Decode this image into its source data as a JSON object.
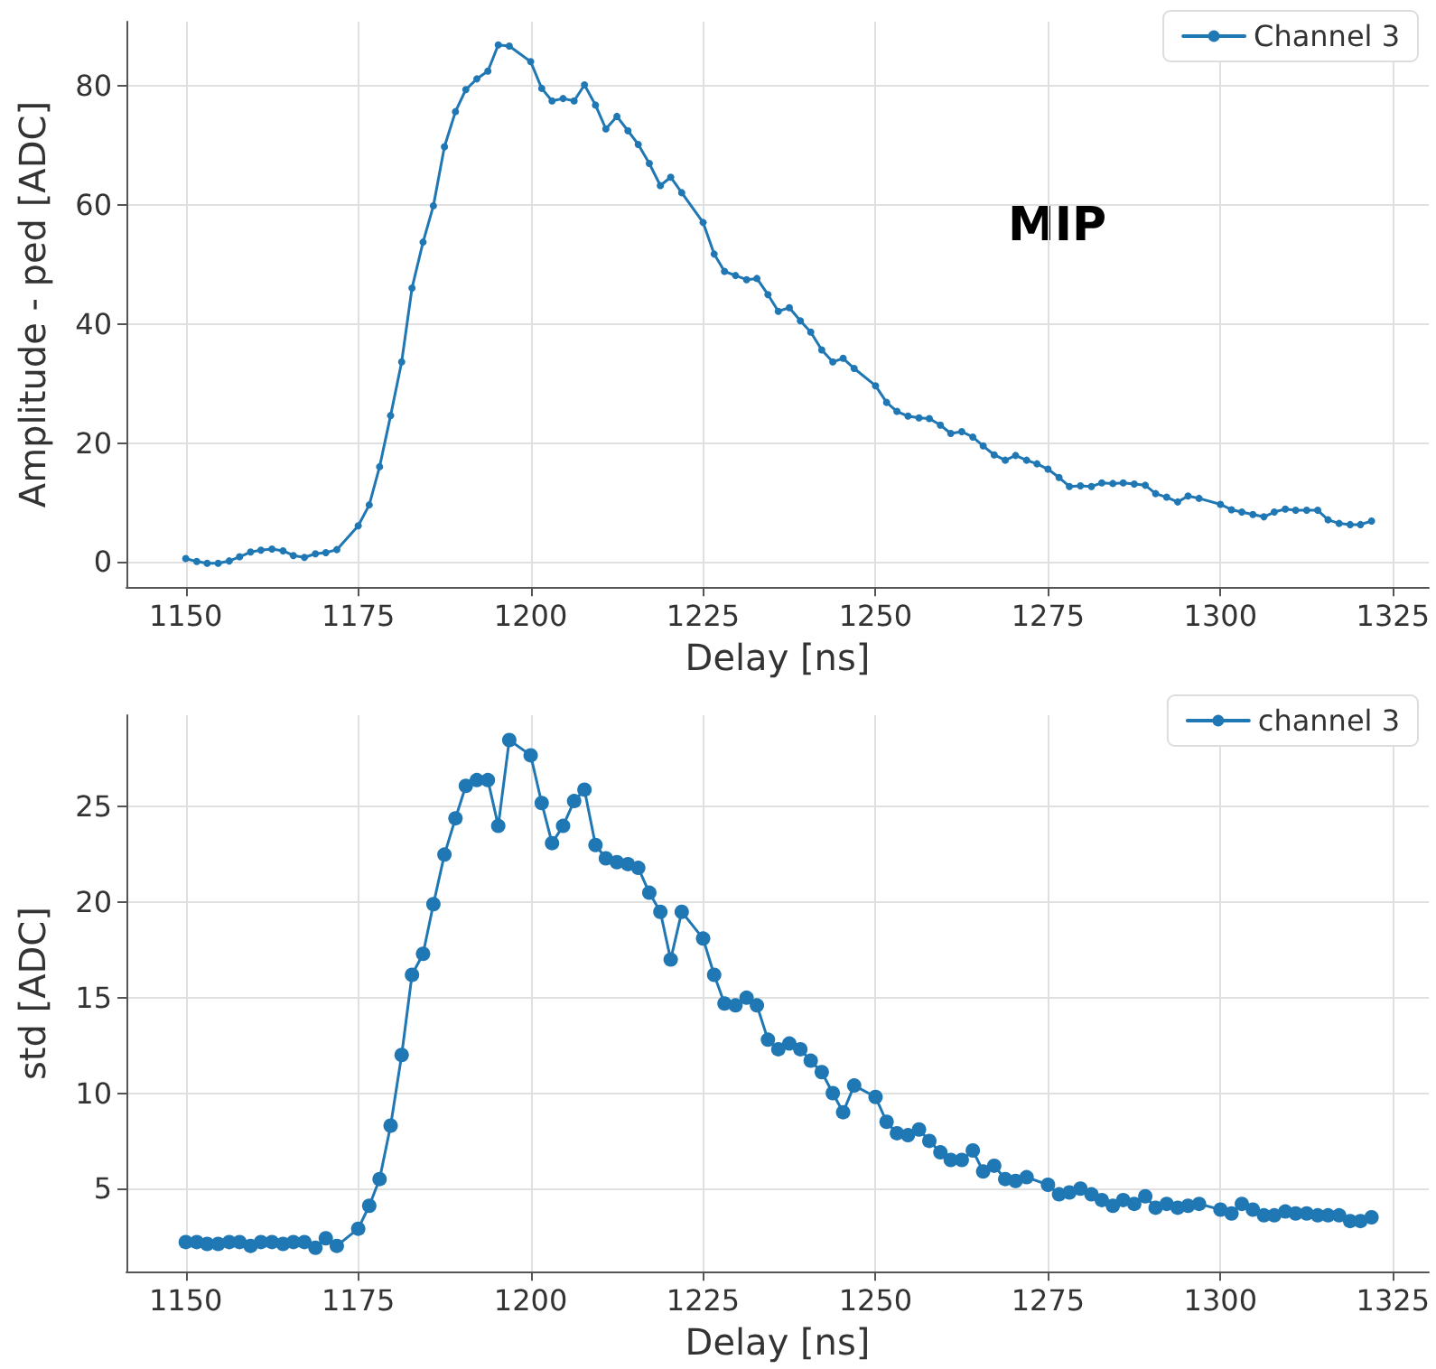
{
  "chart_data": [
    {
      "type": "line",
      "xlabel": "Delay [ns]",
      "ylabel": "Amplitude - ped [ADC]",
      "xlim": [
        1141.4,
        1330.2
      ],
      "xticks": [
        1150,
        1175,
        1200,
        1225,
        1250,
        1275,
        1300,
        1325
      ],
      "ylim": [
        -4.2,
        90.7
      ],
      "yticks": [
        0,
        20,
        40,
        60,
        80
      ],
      "grid": true,
      "legend": "top right",
      "marker": "circle",
      "line_style": "solid",
      "annotations": [
        "MIP"
      ],
      "series": [
        {
          "name": "Channel 3",
          "color": "#1f77b4",
          "x": [
            1150,
            1151.6,
            1153.1,
            1154.7,
            1156.3,
            1157.8,
            1159.4,
            1160.9,
            1162.5,
            1164.1,
            1165.6,
            1167.2,
            1168.8,
            1170.3,
            1171.9,
            1175,
            1176.6,
            1178.1,
            1179.7,
            1181.3,
            1182.8,
            1184.4,
            1185.9,
            1187.5,
            1189.1,
            1190.6,
            1192.2,
            1193.8,
            1195.3,
            1196.9,
            1200,
            1201.6,
            1203.1,
            1204.7,
            1206.3,
            1207.8,
            1209.4,
            1210.9,
            1212.5,
            1214.1,
            1215.6,
            1217.2,
            1218.8,
            1220.3,
            1221.9,
            1225,
            1226.6,
            1228.1,
            1229.7,
            1231.3,
            1232.8,
            1234.4,
            1235.9,
            1237.5,
            1239.1,
            1240.6,
            1242.2,
            1243.8,
            1245.3,
            1246.9,
            1250,
            1251.6,
            1253.1,
            1254.7,
            1256.3,
            1257.8,
            1259.4,
            1260.9,
            1262.5,
            1264.1,
            1265.6,
            1267.2,
            1268.8,
            1270.3,
            1271.9,
            1273.4,
            1275,
            1276.6,
            1278.1,
            1279.7,
            1281.3,
            1282.8,
            1284.4,
            1285.9,
            1287.5,
            1289.1,
            1290.6,
            1292.2,
            1293.8,
            1295.3,
            1296.9,
            1300,
            1301.6,
            1303.1,
            1304.7,
            1306.3,
            1307.8,
            1309.4,
            1310.9,
            1312.5,
            1314.1,
            1315.6,
            1317.2,
            1318.8,
            1320.3,
            1321.9
          ],
          "values": [
            0.6,
            0.1,
            -0.2,
            -0.2,
            0.2,
            0.9,
            1.7,
            2.0,
            2.2,
            1.9,
            1.1,
            0.8,
            1.4,
            1.6,
            2.1,
            6.1,
            9.6,
            16.0,
            24.6,
            33.6,
            46.0,
            53.7,
            59.8,
            69.7,
            75.6,
            79.3,
            81.1,
            82.4,
            86.8,
            86.6,
            84.0,
            79.5,
            77.4,
            77.8,
            77.4,
            80.1,
            76.7,
            72.7,
            74.8,
            72.4,
            70.1,
            66.9,
            63.2,
            64.6,
            62.0,
            57.0,
            51.7,
            48.8,
            48.1,
            47.4,
            47.6,
            44.9,
            42.1,
            42.7,
            40.5,
            38.6,
            35.6,
            33.6,
            34.2,
            32.5,
            29.6,
            26.8,
            25.3,
            24.5,
            24.2,
            24.1,
            23.0,
            21.6,
            21.9,
            21.0,
            19.5,
            18.0,
            17.1,
            17.9,
            17.1,
            16.5,
            15.6,
            14.2,
            12.7,
            12.8,
            12.7,
            13.3,
            13.2,
            13.3,
            13.1,
            12.9,
            11.5,
            10.9,
            10.1,
            11.1,
            10.7,
            9.7,
            8.8,
            8.4,
            8.0,
            7.6,
            8.4,
            8.9,
            8.7,
            8.7,
            8.7,
            7.1,
            6.5,
            6.3,
            6.3,
            6.9
          ]
        }
      ]
    },
    {
      "type": "line",
      "xlabel": "Delay [ns]",
      "ylabel": "std [ADC]",
      "xlim": [
        1141.4,
        1330.2
      ],
      "xticks": [
        1150,
        1175,
        1200,
        1225,
        1250,
        1275,
        1300,
        1325
      ],
      "ylim": [
        0.65,
        29.8
      ],
      "yticks": [
        5,
        10,
        15,
        20,
        25
      ],
      "grid": true,
      "legend": "top right",
      "marker": "circle",
      "line_style": "solid",
      "series": [
        {
          "name": "channel 3",
          "color": "#1f77b4",
          "x": [
            1150,
            1151.6,
            1153.1,
            1154.7,
            1156.3,
            1157.8,
            1159.4,
            1160.9,
            1162.5,
            1164.1,
            1165.6,
            1167.2,
            1168.8,
            1170.3,
            1171.9,
            1175,
            1176.6,
            1178.1,
            1179.7,
            1181.3,
            1182.8,
            1184.4,
            1185.9,
            1187.5,
            1189.1,
            1190.6,
            1192.2,
            1193.8,
            1195.3,
            1196.9,
            1200,
            1201.6,
            1203.1,
            1204.7,
            1206.3,
            1207.8,
            1209.4,
            1210.9,
            1212.5,
            1214.1,
            1215.6,
            1217.2,
            1218.8,
            1220.3,
            1221.9,
            1225,
            1226.6,
            1228.1,
            1229.7,
            1231.3,
            1232.8,
            1234.4,
            1235.9,
            1237.5,
            1239.1,
            1240.6,
            1242.2,
            1243.8,
            1245.3,
            1246.9,
            1250,
            1251.6,
            1253.1,
            1254.7,
            1256.3,
            1257.8,
            1259.4,
            1260.9,
            1262.5,
            1264.1,
            1265.6,
            1267.2,
            1268.8,
            1270.3,
            1271.9,
            1275,
            1276.6,
            1278.1,
            1279.7,
            1281.3,
            1282.8,
            1284.4,
            1285.9,
            1287.5,
            1289.1,
            1290.6,
            1292.2,
            1293.8,
            1295.3,
            1296.9,
            1300,
            1301.6,
            1303.1,
            1304.7,
            1306.3,
            1307.8,
            1309.4,
            1310.9,
            1312.5,
            1314.1,
            1315.6,
            1317.2,
            1318.8,
            1320.3,
            1321.9
          ],
          "values": [
            2.2,
            2.2,
            2.1,
            2.1,
            2.2,
            2.2,
            2.0,
            2.2,
            2.2,
            2.1,
            2.2,
            2.2,
            1.9,
            2.4,
            2.0,
            2.9,
            4.1,
            5.5,
            8.3,
            12.0,
            16.2,
            17.3,
            19.9,
            22.5,
            24.4,
            26.1,
            26.4,
            26.4,
            24.0,
            28.5,
            27.7,
            25.2,
            23.1,
            24.0,
            25.3,
            25.9,
            23.0,
            22.3,
            22.1,
            22.0,
            21.8,
            20.5,
            19.5,
            17.0,
            19.5,
            18.1,
            16.2,
            14.7,
            14.6,
            15.0,
            14.6,
            12.8,
            12.3,
            12.6,
            12.3,
            11.7,
            11.1,
            10.0,
            9.0,
            10.4,
            9.8,
            8.5,
            7.9,
            7.8,
            8.1,
            7.5,
            6.9,
            6.5,
            6.5,
            7.0,
            5.9,
            6.2,
            5.5,
            5.4,
            5.6,
            5.2,
            4.7,
            4.8,
            5.0,
            4.7,
            4.4,
            4.1,
            4.4,
            4.2,
            4.6,
            4.0,
            4.2,
            4.0,
            4.1,
            4.2,
            3.9,
            3.7,
            4.2,
            3.9,
            3.6,
            3.6,
            3.8,
            3.7,
            3.7,
            3.6,
            3.6,
            3.6,
            3.3,
            3.3,
            3.5
          ]
        }
      ]
    }
  ]
}
